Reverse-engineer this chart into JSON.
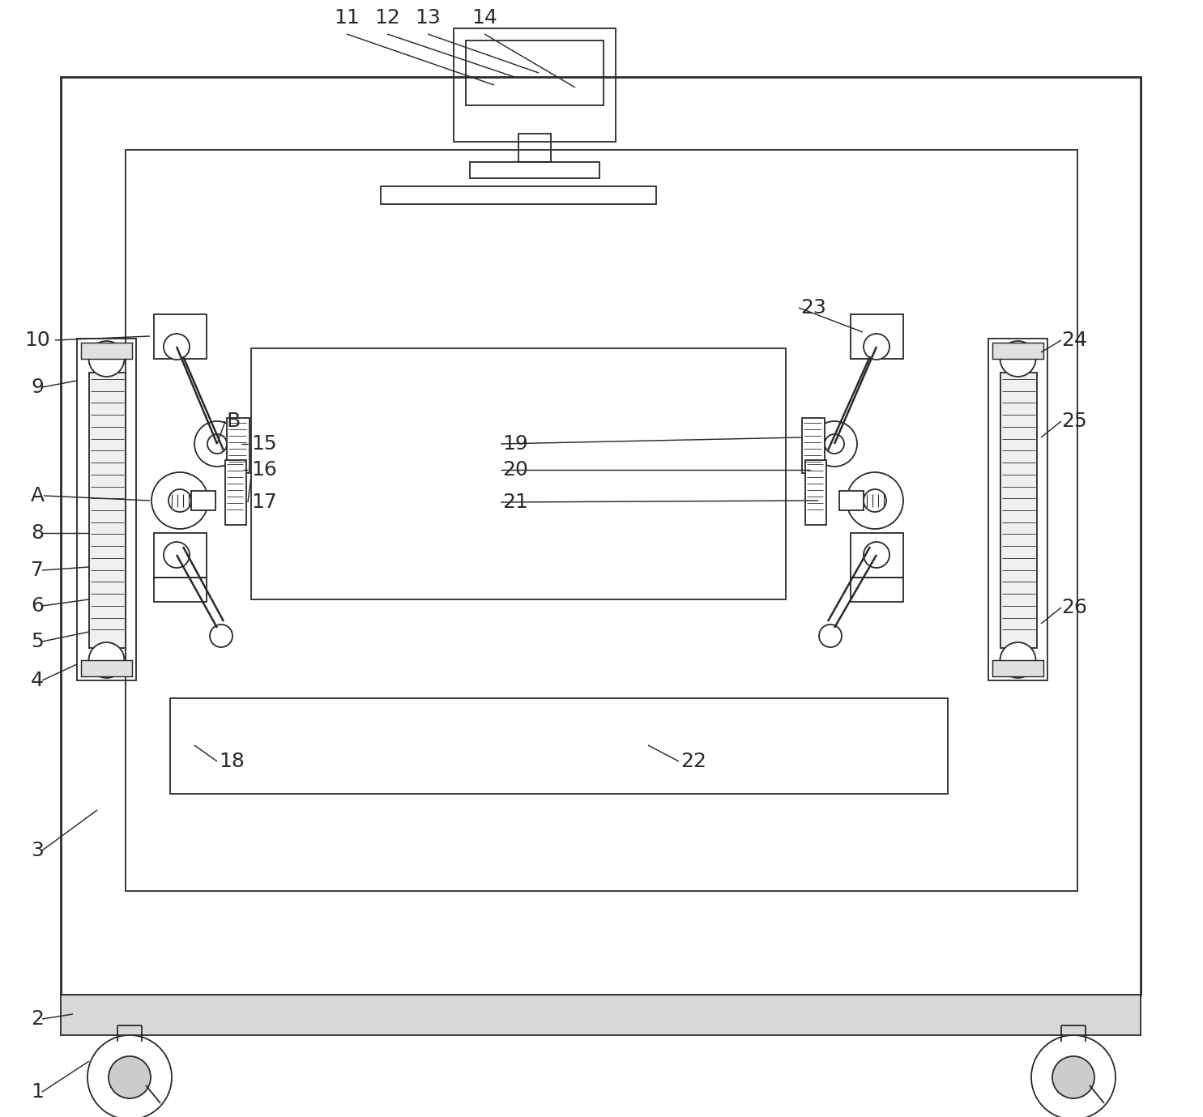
{
  "bg_color": "#ffffff",
  "lc": "#2a2a2a",
  "lw": 1.3,
  "tlw": 2.0,
  "figsize": [
    14.85,
    13.79
  ],
  "dpi": 100
}
